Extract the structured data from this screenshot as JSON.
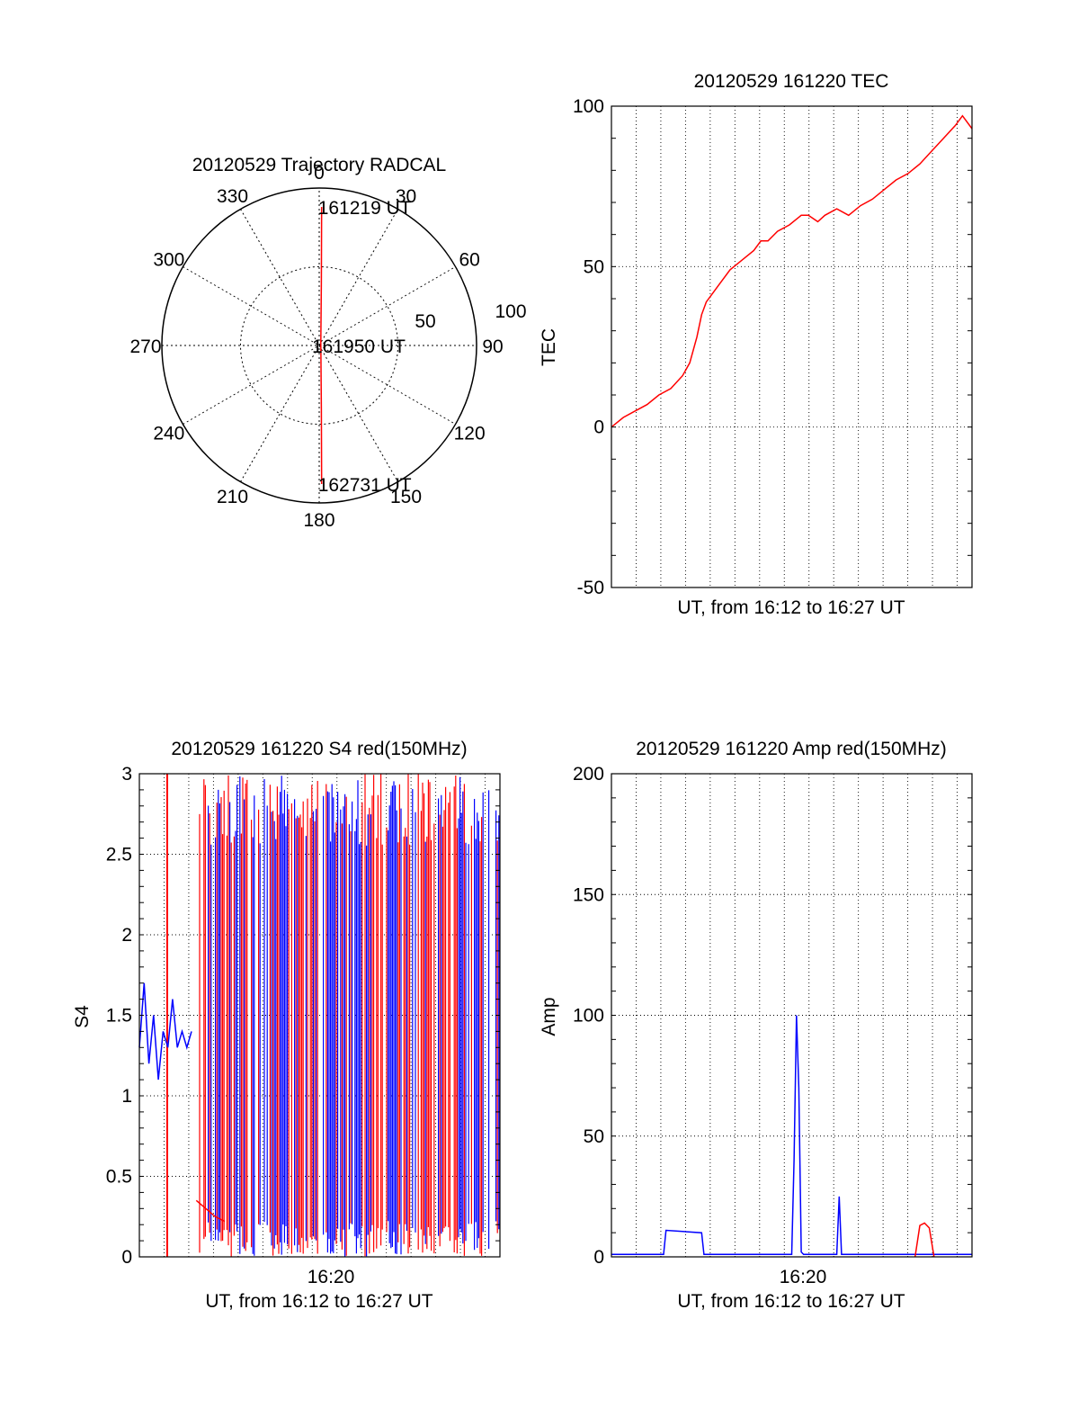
{
  "colors": {
    "trace_red": "#ff0000",
    "trace_blue": "#0000ff",
    "axis": "#000000"
  },
  "chart_data": [
    {
      "id": "trajectory",
      "type": "polar",
      "title": "20120529 Trajectory RADCAL",
      "angle_labels": [
        "0",
        "30",
        "60",
        "90",
        "120",
        "150",
        "180",
        "210",
        "240",
        "270",
        "300",
        "330"
      ],
      "radius_labels": [
        "50",
        "100"
      ],
      "rmax": 100,
      "trace": [
        {
          "az": 1,
          "el_r": 88
        },
        {
          "az": 2,
          "el_r": 40
        },
        {
          "az": 30,
          "el_r": 2
        },
        {
          "az": 178,
          "el_r": 40
        },
        {
          "az": 179,
          "el_r": 88
        }
      ],
      "annotations": [
        {
          "text": "161219 UT",
          "az": 1,
          "r": 88
        },
        {
          "text": "161950 UT",
          "az": 0,
          "r": 0
        },
        {
          "text": "162731 UT",
          "az": 179,
          "r": 88
        }
      ]
    },
    {
      "id": "tec",
      "type": "line",
      "title": "20120529 161220 TEC",
      "xlabel": "UT, from 16:12 to 16:27 UT",
      "ylabel": "TEC",
      "xlim": [
        0,
        15.2
      ],
      "ylim": [
        -50,
        100
      ],
      "yticks": [
        "-50",
        "0",
        "50",
        "100"
      ],
      "series": [
        {
          "color": "red",
          "x": [
            0,
            0.5,
            1.0,
            1.5,
            2.0,
            2.5,
            3.0,
            3.3,
            3.6,
            3.8,
            4.0,
            4.2,
            4.5,
            5.0,
            5.5,
            6.0,
            6.3,
            6.6,
            7.0,
            7.5,
            8.0,
            8.3,
            8.7,
            9.0,
            9.5,
            10.0,
            10.5,
            11.0,
            11.5,
            12.0,
            12.5,
            13.0,
            13.5,
            14.0,
            14.5,
            14.8,
            15.2
          ],
          "y": [
            0,
            3,
            5,
            7,
            10,
            12,
            16,
            20,
            28,
            35,
            39,
            41,
            44,
            49,
            52,
            55,
            58,
            58,
            61,
            63,
            66,
            66,
            64,
            66,
            68,
            66,
            69,
            71,
            74,
            77,
            79,
            82,
            86,
            90,
            94,
            97,
            93
          ]
        }
      ]
    },
    {
      "id": "s4",
      "type": "line",
      "title": "20120529 161220 S4 red(150MHz)",
      "xlabel": "UT, from 16:12 to 16:27 UT",
      "ylabel": "S4",
      "xtick_label": "16:20",
      "xlim": [
        0,
        15.2
      ],
      "ylim": [
        0,
        3
      ],
      "yticks": [
        "0",
        "0.5",
        "1",
        "1.5",
        "2",
        "2.5",
        "3"
      ],
      "series": [
        {
          "color": "blue",
          "x": [
            0,
            0.2,
            0.4,
            0.6,
            0.8,
            1.0,
            1.2,
            1.4,
            1.6,
            1.8,
            2.0,
            2.2
          ],
          "y": [
            1.3,
            1.7,
            1.2,
            1.5,
            1.1,
            1.4,
            1.3,
            1.6,
            1.3,
            1.4,
            1.3,
            1.4
          ]
        },
        {
          "color": "red",
          "x": [
            2.4,
            2.8,
            3.2,
            3.6
          ],
          "y": [
            0.35,
            0.3,
            0.25,
            0.22
          ]
        }
      ]
    },
    {
      "id": "amp",
      "type": "line",
      "title": "20120529 161220 Amp red(150MHz)",
      "xlabel": "UT, from 16:12 to 16:27 UT",
      "ylabel": "Amp",
      "xtick_label": "16:20",
      "xlim": [
        0,
        15.2
      ],
      "ylim": [
        0,
        200
      ],
      "yticks": [
        "0",
        "50",
        "100",
        "150",
        "200"
      ],
      "series": [
        {
          "color": "blue",
          "x": [
            0,
            2.2,
            2.3,
            3.8,
            3.9,
            7.6,
            7.7,
            7.8,
            7.9,
            8.0,
            8.1,
            9.5,
            9.6,
            9.7,
            15.2
          ],
          "y": [
            1,
            1,
            11,
            10,
            1,
            1,
            40,
            100,
            70,
            2,
            1,
            1,
            25,
            1,
            1
          ]
        },
        {
          "color": "red",
          "x": [
            12.8,
            13.0,
            13.2,
            13.4,
            13.6
          ],
          "y": [
            0,
            13,
            14,
            12,
            0
          ]
        }
      ]
    }
  ]
}
